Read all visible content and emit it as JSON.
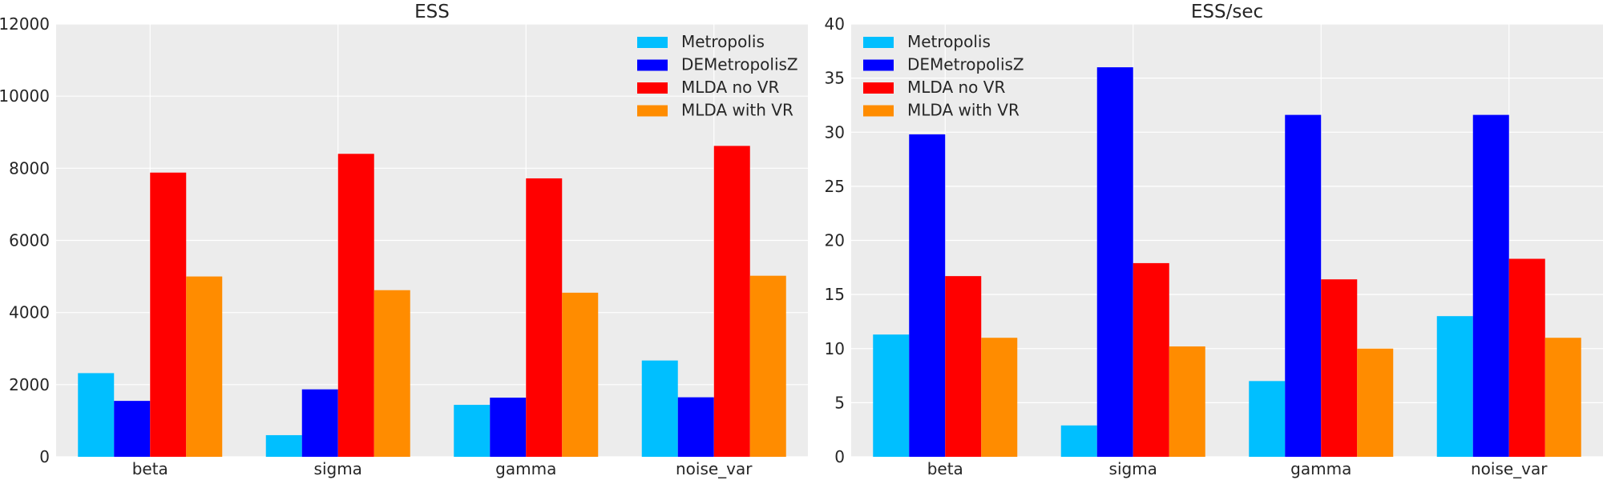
{
  "chart_data": [
    {
      "type": "bar",
      "title": "ESS",
      "xlabel": "",
      "ylabel": "",
      "categories": [
        "beta",
        "sigma",
        "gamma",
        "noise_var"
      ],
      "ylim": [
        0,
        12000
      ],
      "yticks": [
        0,
        2000,
        4000,
        6000,
        8000,
        10000,
        12000
      ],
      "grid": true,
      "legend_position": "top-right",
      "series": [
        {
          "name": "Metropolis",
          "color": "#00bfff",
          "values": [
            2320,
            600,
            1440,
            2670
          ]
        },
        {
          "name": "DEMetropolisZ",
          "color": "#0000ff",
          "values": [
            1550,
            1870,
            1640,
            1650
          ]
        },
        {
          "name": "MLDA no VR",
          "color": "#ff0000",
          "values": [
            7880,
            8400,
            7720,
            8620
          ]
        },
        {
          "name": "MLDA with VR",
          "color": "#ff8c00",
          "values": [
            5000,
            4620,
            4550,
            5020
          ]
        }
      ]
    },
    {
      "type": "bar",
      "title": "ESS/sec",
      "xlabel": "",
      "ylabel": "",
      "categories": [
        "beta",
        "sigma",
        "gamma",
        "noise_var"
      ],
      "ylim": [
        0,
        40
      ],
      "yticks": [
        0,
        5,
        10,
        15,
        20,
        25,
        30,
        35,
        40
      ],
      "grid": true,
      "legend_position": "top-left",
      "series": [
        {
          "name": "Metropolis",
          "color": "#00bfff",
          "values": [
            11.3,
            2.9,
            7.0,
            13.0
          ]
        },
        {
          "name": "DEMetropolisZ",
          "color": "#0000ff",
          "values": [
            29.8,
            36.0,
            31.6,
            31.6
          ]
        },
        {
          "name": "MLDA no VR",
          "color": "#ff0000",
          "values": [
            16.7,
            17.9,
            16.4,
            18.3
          ]
        },
        {
          "name": "MLDA with VR",
          "color": "#ff8c00",
          "values": [
            11.0,
            10.2,
            10.0,
            11.0
          ]
        }
      ]
    }
  ]
}
